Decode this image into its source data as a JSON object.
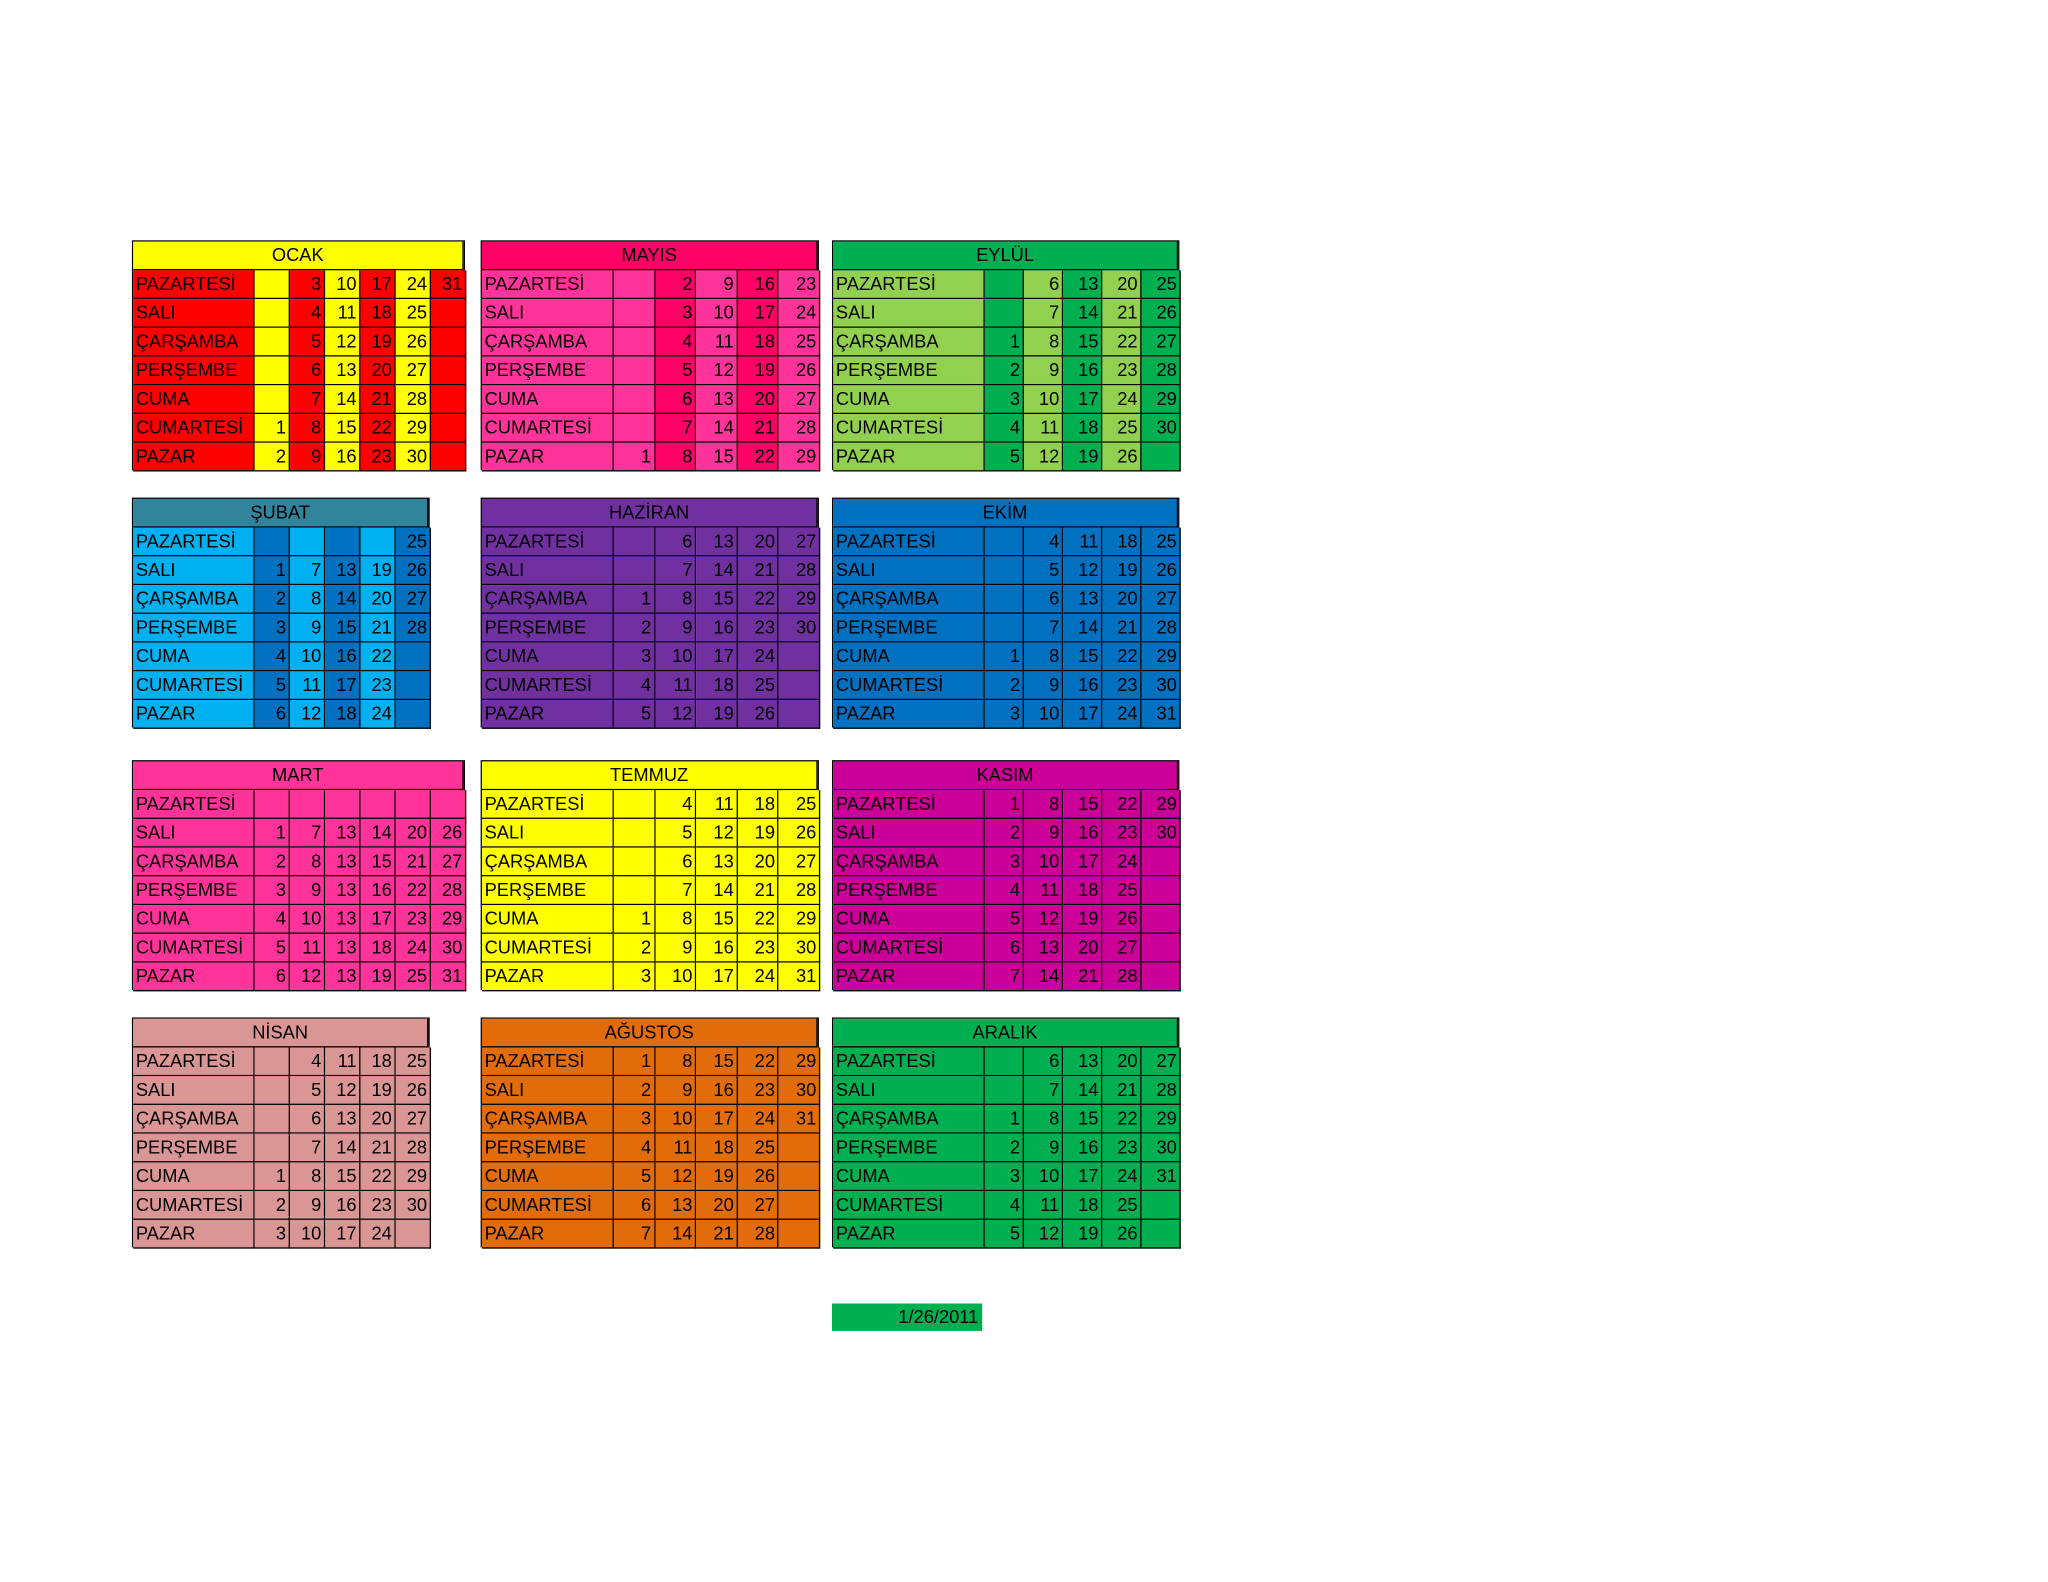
{
  "months": [
    {
      "name": "OCAK",
      "header_color": "#ffff00",
      "label_color": "#ff0000",
      "column_colors": [
        "#ffff00",
        "#ff0000",
        "#ffff00",
        "#ff0000",
        "#ffff00",
        "#ff0000"
      ],
      "rows": [
        {
          "day": "PAZARTESİ",
          "cells": [
            null,
            3,
            10,
            17,
            24,
            31
          ]
        },
        {
          "day": "SALI",
          "cells": [
            null,
            4,
            11,
            18,
            25,
            null
          ]
        },
        {
          "day": "ÇARŞAMBA",
          "cells": [
            null,
            5,
            12,
            19,
            26,
            null
          ]
        },
        {
          "day": "PERŞEMBE",
          "cells": [
            null,
            6,
            13,
            20,
            27,
            null
          ]
        },
        {
          "day": "CUMA",
          "cells": [
            null,
            7,
            14,
            21,
            28,
            null
          ]
        },
        {
          "day": "CUMARTESİ",
          "cells": [
            1,
            8,
            15,
            22,
            29,
            null
          ]
        },
        {
          "day": "PAZAR",
          "cells": [
            2,
            9,
            16,
            23,
            30,
            null
          ]
        }
      ]
    },
    {
      "name": "ŞUBAT",
      "header_color": "#31849b",
      "label_color": "#00b0f0",
      "column_colors": [
        "#0070c0",
        "#00b0f0",
        "#0070c0",
        "#00b0f0",
        "#0070c0"
      ],
      "rows": [
        {
          "day": "PAZARTESİ",
          "cells": [
            null,
            null,
            null,
            null,
            25
          ]
        },
        {
          "day": "SALI",
          "cells": [
            1,
            7,
            13,
            19,
            26
          ]
        },
        {
          "day": "ÇARŞAMBA",
          "cells": [
            2,
            8,
            14,
            20,
            27
          ]
        },
        {
          "day": "PERŞEMBE",
          "cells": [
            3,
            9,
            15,
            21,
            28
          ]
        },
        {
          "day": "CUMA",
          "cells": [
            4,
            10,
            16,
            22,
            null
          ]
        },
        {
          "day": "CUMARTESİ",
          "cells": [
            5,
            11,
            17,
            23,
            null
          ]
        },
        {
          "day": "PAZAR",
          "cells": [
            6,
            12,
            18,
            24,
            null
          ]
        }
      ]
    },
    {
      "name": "MART",
      "header_color": "#ff3399",
      "label_color": "#ff3399",
      "column_colors": [
        "#ff3399",
        "#ff3399",
        "#ff3399",
        "#ff3399",
        "#ff3399",
        "#ff3399"
      ],
      "rows": [
        {
          "day": "PAZARTESİ",
          "cells": [
            null,
            null,
            null,
            null,
            null,
            null
          ]
        },
        {
          "day": "SALI",
          "cells": [
            1,
            7,
            13,
            14,
            20,
            26
          ]
        },
        {
          "day": "ÇARŞAMBA",
          "cells": [
            2,
            8,
            13,
            15,
            21,
            27
          ]
        },
        {
          "day": "PERŞEMBE",
          "cells": [
            3,
            9,
            13,
            16,
            22,
            28
          ]
        },
        {
          "day": "CUMA",
          "cells": [
            4,
            10,
            13,
            17,
            23,
            29
          ]
        },
        {
          "day": "CUMARTESİ",
          "cells": [
            5,
            11,
            13,
            18,
            24,
            30
          ]
        },
        {
          "day": "PAZAR",
          "cells": [
            6,
            12,
            13,
            19,
            25,
            31
          ]
        }
      ]
    },
    {
      "name": "NİSAN",
      "header_color": "#da9694",
      "label_color": "#da9694",
      "column_colors": [
        "#da9694",
        "#da9694",
        "#da9694",
        "#da9694",
        "#da9694"
      ],
      "rows": [
        {
          "day": "PAZARTESİ",
          "cells": [
            null,
            4,
            11,
            18,
            25
          ]
        },
        {
          "day": "SALI",
          "cells": [
            null,
            5,
            12,
            19,
            26
          ]
        },
        {
          "day": "ÇARŞAMBA",
          "cells": [
            null,
            6,
            13,
            20,
            27
          ]
        },
        {
          "day": "PERŞEMBE",
          "cells": [
            null,
            7,
            14,
            21,
            28
          ]
        },
        {
          "day": "CUMA",
          "cells": [
            1,
            8,
            15,
            22,
            29
          ]
        },
        {
          "day": "CUMARTESİ",
          "cells": [
            2,
            9,
            16,
            23,
            30
          ]
        },
        {
          "day": "PAZAR",
          "cells": [
            3,
            10,
            17,
            24,
            null
          ]
        }
      ]
    },
    {
      "name": "MAYIS",
      "header_color": "#ff0066",
      "label_color": "#ff3399",
      "column_colors": [
        "#ff3399",
        "#ff0066",
        "#ff3399",
        "#ff0066",
        "#ff3399"
      ],
      "rows": [
        {
          "day": "PAZARTESİ",
          "cells": [
            null,
            2,
            9,
            16,
            23
          ]
        },
        {
          "day": "SALI",
          "cells": [
            null,
            3,
            10,
            17,
            24
          ]
        },
        {
          "day": "ÇARŞAMBA",
          "cells": [
            null,
            4,
            11,
            18,
            25
          ]
        },
        {
          "day": "PERŞEMBE",
          "cells": [
            null,
            5,
            12,
            19,
            26
          ]
        },
        {
          "day": "CUMA",
          "cells": [
            null,
            6,
            13,
            20,
            27
          ]
        },
        {
          "day": "CUMARTESİ",
          "cells": [
            null,
            7,
            14,
            21,
            28
          ]
        },
        {
          "day": "PAZAR",
          "cells": [
            1,
            8,
            15,
            22,
            29
          ]
        }
      ]
    },
    {
      "name": "HAZİRAN",
      "header_color": "#7030a0",
      "label_color": "#7030a0",
      "column_colors": [
        "#7030a0",
        "#7030a0",
        "#7030a0",
        "#7030a0",
        "#7030a0"
      ],
      "rows": [
        {
          "day": "PAZARTESİ",
          "cells": [
            null,
            6,
            13,
            20,
            27
          ]
        },
        {
          "day": "SALI",
          "cells": [
            null,
            7,
            14,
            21,
            28
          ]
        },
        {
          "day": "ÇARŞAMBA",
          "cells": [
            1,
            8,
            15,
            22,
            29
          ]
        },
        {
          "day": "PERŞEMBE",
          "cells": [
            2,
            9,
            16,
            23,
            30
          ]
        },
        {
          "day": "CUMA",
          "cells": [
            3,
            10,
            17,
            24,
            null
          ]
        },
        {
          "day": "CUMARTESİ",
          "cells": [
            4,
            11,
            18,
            25,
            null
          ]
        },
        {
          "day": "PAZAR",
          "cells": [
            5,
            12,
            19,
            26,
            null
          ]
        }
      ]
    },
    {
      "name": "TEMMUZ",
      "header_color": "#ffff00",
      "label_color": "#ffff00",
      "column_colors": [
        "#ffff00",
        "#ffff00",
        "#ffff00",
        "#ffff00",
        "#ffff00"
      ],
      "rows": [
        {
          "day": "PAZARTESİ",
          "cells": [
            null,
            4,
            11,
            18,
            25
          ]
        },
        {
          "day": "SALI",
          "cells": [
            null,
            5,
            12,
            19,
            26
          ]
        },
        {
          "day": "ÇARŞAMBA",
          "cells": [
            null,
            6,
            13,
            20,
            27
          ]
        },
        {
          "day": "PERŞEMBE",
          "cells": [
            null,
            7,
            14,
            21,
            28
          ]
        },
        {
          "day": "CUMA",
          "cells": [
            1,
            8,
            15,
            22,
            29
          ]
        },
        {
          "day": "CUMARTESİ",
          "cells": [
            2,
            9,
            16,
            23,
            30
          ]
        },
        {
          "day": "PAZAR",
          "cells": [
            3,
            10,
            17,
            24,
            31
          ]
        }
      ]
    },
    {
      "name": "AĞUSTOS",
      "header_color": "#e26b0a",
      "label_color": "#e26b0a",
      "column_colors": [
        "#e26b0a",
        "#e26b0a",
        "#e26b0a",
        "#e26b0a",
        "#e26b0a"
      ],
      "rows": [
        {
          "day": "PAZARTESİ",
          "cells": [
            1,
            8,
            15,
            22,
            29
          ]
        },
        {
          "day": "SALI",
          "cells": [
            2,
            9,
            16,
            23,
            30
          ]
        },
        {
          "day": "ÇARŞAMBA",
          "cells": [
            3,
            10,
            17,
            24,
            31
          ]
        },
        {
          "day": "PERŞEMBE",
          "cells": [
            4,
            11,
            18,
            25,
            null
          ]
        },
        {
          "day": "CUMA",
          "cells": [
            5,
            12,
            19,
            26,
            null
          ]
        },
        {
          "day": "CUMARTESİ",
          "cells": [
            6,
            13,
            20,
            27,
            null
          ]
        },
        {
          "day": "PAZAR",
          "cells": [
            7,
            14,
            21,
            28,
            null
          ]
        }
      ]
    },
    {
      "name": "EYLÜL",
      "header_color": "#00b050",
      "label_color": "#92d050",
      "column_colors": [
        "#00b050",
        "#92d050",
        "#00b050",
        "#92d050",
        "#00b050"
      ],
      "rows": [
        {
          "day": "PAZARTESİ",
          "cells": [
            null,
            6,
            13,
            20,
            25
          ]
        },
        {
          "day": "SALI",
          "cells": [
            null,
            7,
            14,
            21,
            26
          ]
        },
        {
          "day": "ÇARŞAMBA",
          "cells": [
            1,
            8,
            15,
            22,
            27
          ]
        },
        {
          "day": "PERŞEMBE",
          "cells": [
            2,
            9,
            16,
            23,
            28
          ]
        },
        {
          "day": "CUMA",
          "cells": [
            3,
            10,
            17,
            24,
            29
          ]
        },
        {
          "day": "CUMARTESİ",
          "cells": [
            4,
            11,
            18,
            25,
            30
          ]
        },
        {
          "day": "PAZAR",
          "cells": [
            5,
            12,
            19,
            26,
            null
          ]
        }
      ]
    },
    {
      "name": "EKİM",
      "header_color": "#0070c0",
      "label_color": "#0070c0",
      "column_colors": [
        "#0070c0",
        "#0070c0",
        "#0070c0",
        "#0070c0",
        "#0070c0"
      ],
      "rows": [
        {
          "day": "PAZARTESİ",
          "cells": [
            null,
            4,
            11,
            18,
            25
          ]
        },
        {
          "day": "SALI",
          "cells": [
            null,
            5,
            12,
            19,
            26
          ]
        },
        {
          "day": "ÇARŞAMBA",
          "cells": [
            null,
            6,
            13,
            20,
            27
          ]
        },
        {
          "day": "PERŞEMBE",
          "cells": [
            null,
            7,
            14,
            21,
            28
          ]
        },
        {
          "day": "CUMA",
          "cells": [
            1,
            8,
            15,
            22,
            29
          ]
        },
        {
          "day": "CUMARTESİ",
          "cells": [
            2,
            9,
            16,
            23,
            30
          ]
        },
        {
          "day": "PAZAR",
          "cells": [
            3,
            10,
            17,
            24,
            31
          ]
        }
      ]
    },
    {
      "name": "KASIM",
      "header_color": "#cc0099",
      "label_color": "#cc0099",
      "column_colors": [
        "#cc0099",
        "#cc0099",
        "#cc0099",
        "#cc0099",
        "#cc0099"
      ],
      "rows": [
        {
          "day": "PAZARTESİ",
          "cells": [
            1,
            8,
            15,
            22,
            29
          ]
        },
        {
          "day": "SALI",
          "cells": [
            2,
            9,
            16,
            23,
            30
          ]
        },
        {
          "day": "ÇARŞAMBA",
          "cells": [
            3,
            10,
            17,
            24,
            null
          ]
        },
        {
          "day": "PERŞEMBE",
          "cells": [
            4,
            11,
            18,
            25,
            null
          ]
        },
        {
          "day": "CUMA",
          "cells": [
            5,
            12,
            19,
            26,
            null
          ]
        },
        {
          "day": "CUMARTESİ",
          "cells": [
            6,
            13,
            20,
            27,
            null
          ]
        },
        {
          "day": "PAZAR",
          "cells": [
            7,
            14,
            21,
            28,
            null
          ]
        }
      ]
    },
    {
      "name": "ARALIK",
      "header_color": "#00b050",
      "label_color": "#00b050",
      "column_colors": [
        "#00b050",
        "#00b050",
        "#00b050",
        "#00b050",
        "#00b050"
      ],
      "rows": [
        {
          "day": "PAZARTESİ",
          "cells": [
            null,
            6,
            13,
            20,
            27
          ]
        },
        {
          "day": "SALI",
          "cells": [
            null,
            7,
            14,
            21,
            28
          ]
        },
        {
          "day": "ÇARŞAMBA",
          "cells": [
            1,
            8,
            15,
            22,
            29
          ]
        },
        {
          "day": "PERŞEMBE",
          "cells": [
            2,
            9,
            16,
            23,
            30
          ]
        },
        {
          "day": "CUMA",
          "cells": [
            3,
            10,
            17,
            24,
            31
          ]
        },
        {
          "day": "CUMARTESİ",
          "cells": [
            4,
            11,
            18,
            25,
            null
          ]
        },
        {
          "day": "PAZAR",
          "cells": [
            5,
            12,
            19,
            26,
            null
          ]
        }
      ]
    }
  ],
  "date": {
    "text": "1/26/2011",
    "color": "#00b050"
  }
}
